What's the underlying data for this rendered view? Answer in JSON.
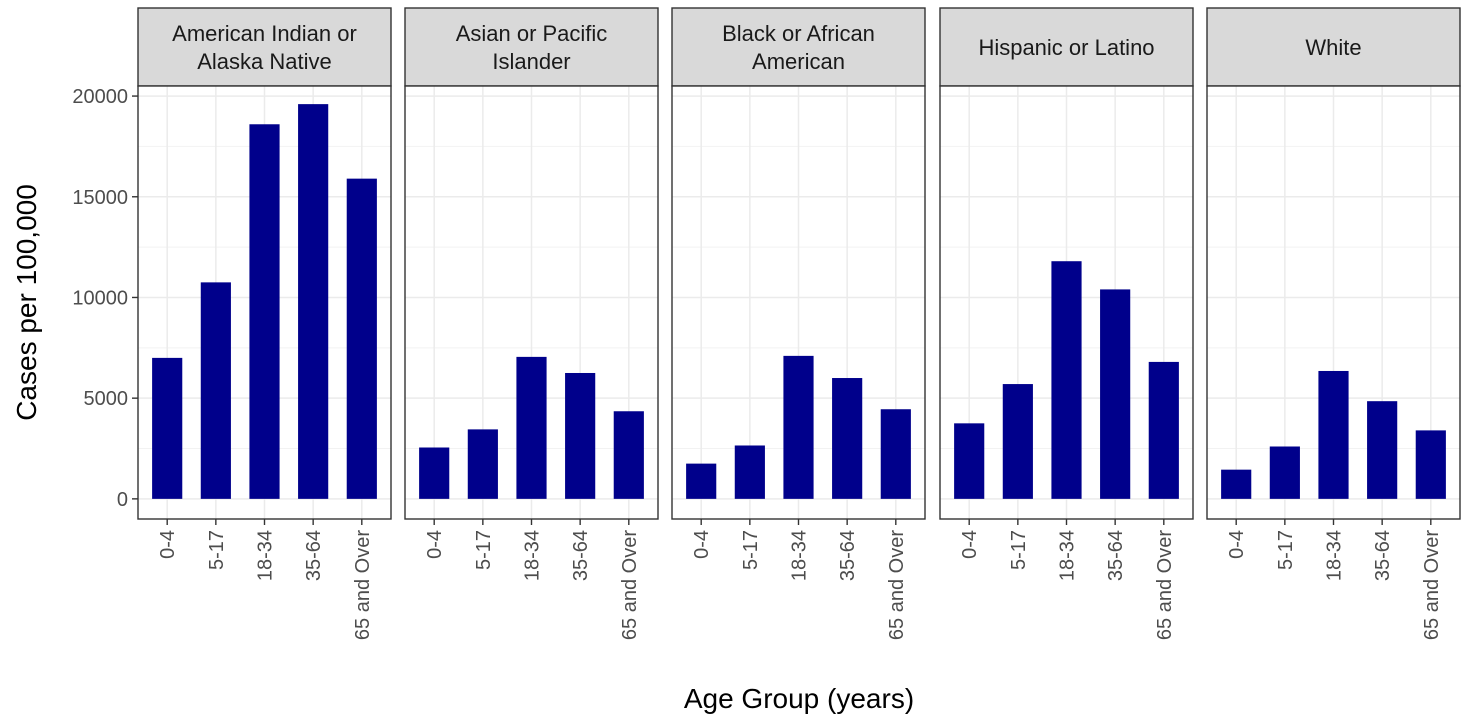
{
  "chart_data": {
    "type": "bar",
    "xlabel": "Age Group (years)",
    "ylabel": "Cases per 100,000",
    "ylim": [
      -1000,
      20500
    ],
    "y_ticks": [
      0,
      5000,
      10000,
      15000,
      20000
    ],
    "y_tick_labels": [
      "0",
      "5000",
      "10000",
      "15000",
      "20000"
    ],
    "categories": [
      "0-4",
      "5-17",
      "18-34",
      "35-64",
      "65 and Over"
    ],
    "bar_color": "#00008B",
    "grid": true,
    "panels": [
      {
        "strip": [
          "American Indian or",
          "Alaska Native"
        ],
        "values": [
          7000,
          10750,
          18600,
          19600,
          15900
        ]
      },
      {
        "strip": [
          "Asian or Pacific",
          "Islander"
        ],
        "values": [
          2550,
          3450,
          7050,
          6250,
          4350
        ]
      },
      {
        "strip": [
          "Black or African",
          "American"
        ],
        "values": [
          1750,
          2650,
          7100,
          6000,
          4450
        ]
      },
      {
        "strip": [
          "Hispanic or Latino"
        ],
        "values": [
          3750,
          5700,
          11800,
          10400,
          6800
        ]
      },
      {
        "strip": [
          "White"
        ],
        "values": [
          1450,
          2600,
          6350,
          4850,
          3400
        ]
      }
    ]
  }
}
